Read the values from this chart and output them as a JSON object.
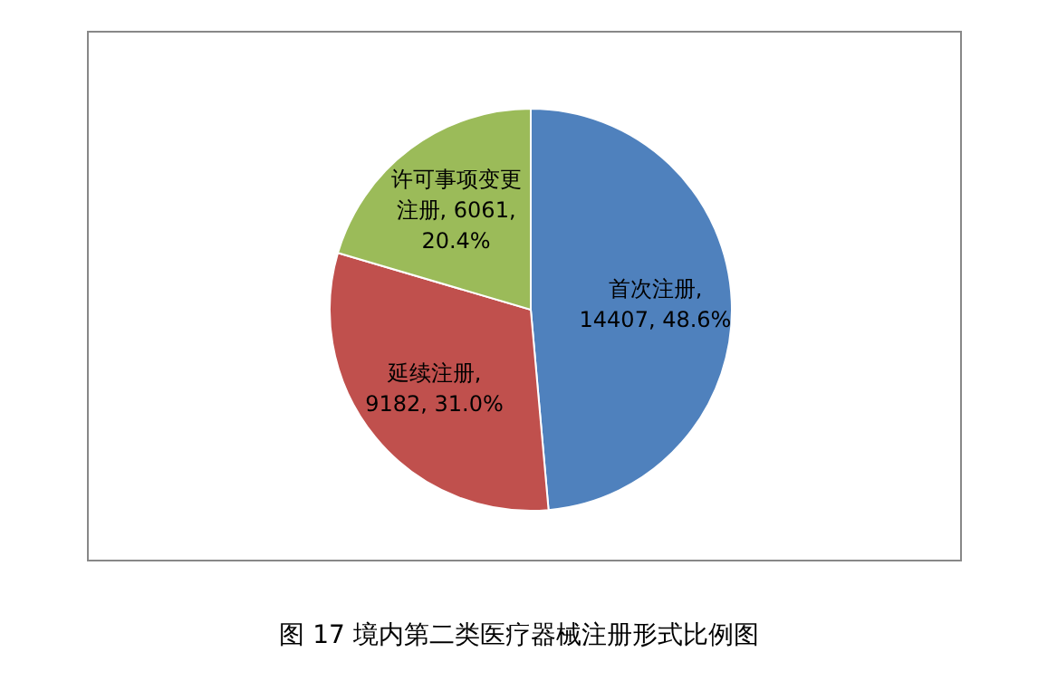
{
  "chart_data": {
    "type": "pie",
    "title": "图 17 境内第二类医疗器械注册形式比例图",
    "categories": [
      "首次注册",
      "延续注册",
      "许可事项变更注册"
    ],
    "values": [
      14407,
      9182,
      6061
    ],
    "value_labels": [
      ", 14407, 48.6%",
      ", 9182, 31.0%",
      ", 6061, 20.4%"
    ],
    "colors": [
      "#4f81bd",
      "#c0504d",
      "#9bbb59"
    ]
  }
}
